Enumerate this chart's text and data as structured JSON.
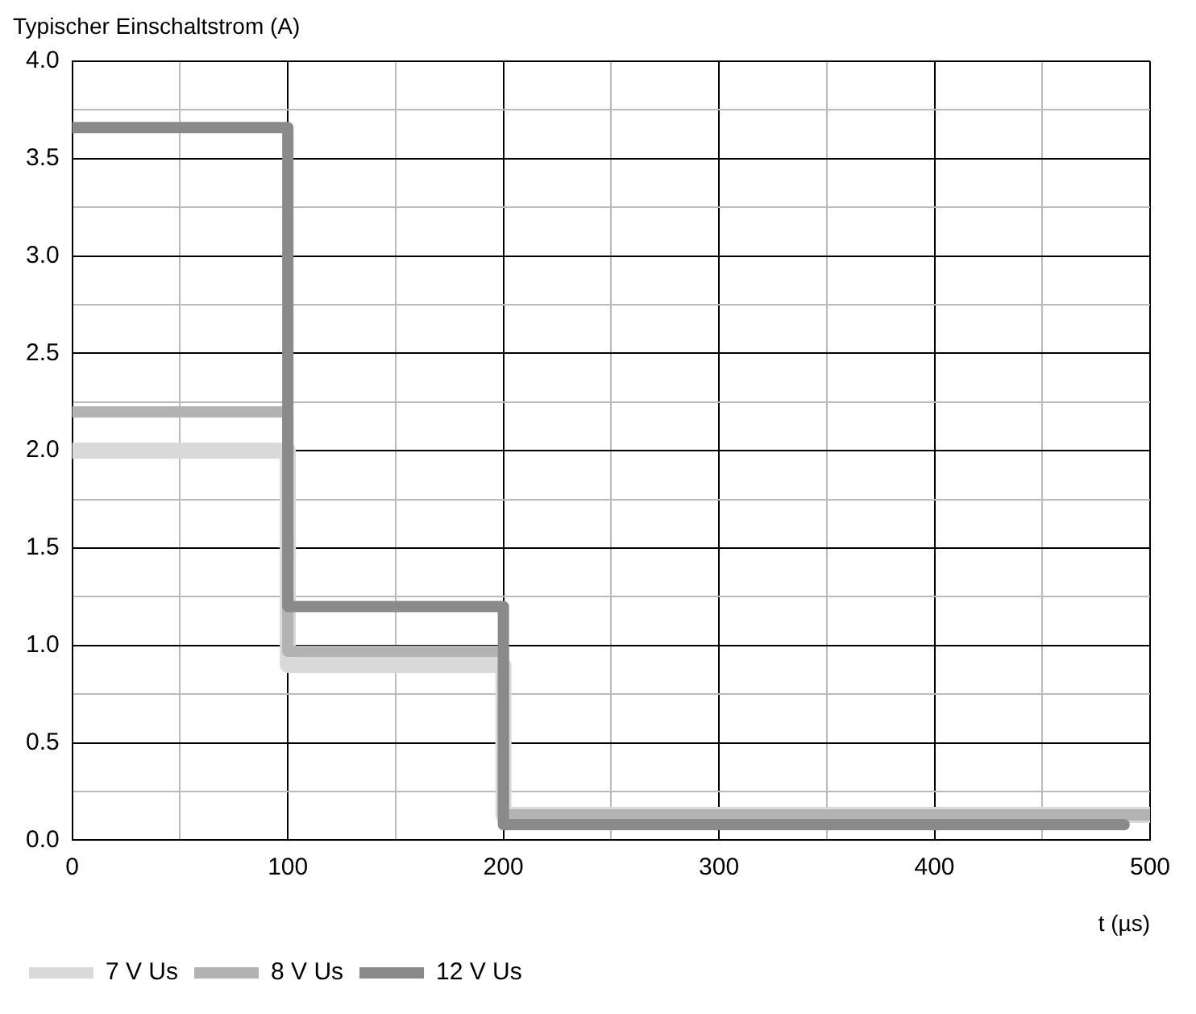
{
  "chart_data": {
    "type": "step",
    "ylabel": "Typischer Einschaltstrom (A)",
    "xlabel": "t (µs)",
    "xlim": [
      0,
      500
    ],
    "xticks": [
      0,
      {
        "value": 50,
        "label": null
      },
      100,
      {
        "value": 150,
        "label": null
      },
      200,
      {
        "value": 250,
        "label": null
      },
      300,
      {
        "value": 350,
        "label": null
      },
      400,
      {
        "value": 450,
        "label": null
      },
      500
    ],
    "ylim": [
      0,
      4.0
    ],
    "yticks": [
      {
        "value": 0,
        "label": "0.0"
      },
      {
        "value": 0.25,
        "label": null
      },
      0.5,
      {
        "value": 0.75,
        "label": null
      },
      {
        "value": 1,
        "label": "1.0"
      },
      {
        "value": 1.25,
        "label": null
      },
      1.5,
      {
        "value": 1.75,
        "label": null
      },
      {
        "value": 2,
        "label": "2.0"
      },
      {
        "value": 2.25,
        "label": null
      },
      2.5,
      {
        "value": 2.75,
        "label": null
      },
      {
        "value": 3,
        "label": "3.0"
      },
      {
        "value": 3.25,
        "label": null
      },
      3.5,
      {
        "value": 3.75,
        "label": null
      },
      {
        "value": 4,
        "label": "4.0"
      }
    ],
    "grid": true,
    "legend": "bottom left",
    "series": [
      {
        "name": "7 V Us",
        "color": "#d9d9d9",
        "x": [
          0,
          100,
          200,
          500
        ],
        "values": [
          2.0,
          0.9,
          0.13,
          0.13
        ]
      },
      {
        "name": "8 V Us",
        "color": "#b3b3b3",
        "x": [
          0,
          100,
          200,
          500
        ],
        "values": [
          2.2,
          0.97,
          0.13,
          0.13
        ]
      },
      {
        "name": "12 V Us",
        "color": "#8a8a8a",
        "x": [
          0,
          100,
          200,
          488
        ],
        "values": [
          3.66,
          1.2,
          0.08,
          0.08
        ]
      }
    ]
  }
}
